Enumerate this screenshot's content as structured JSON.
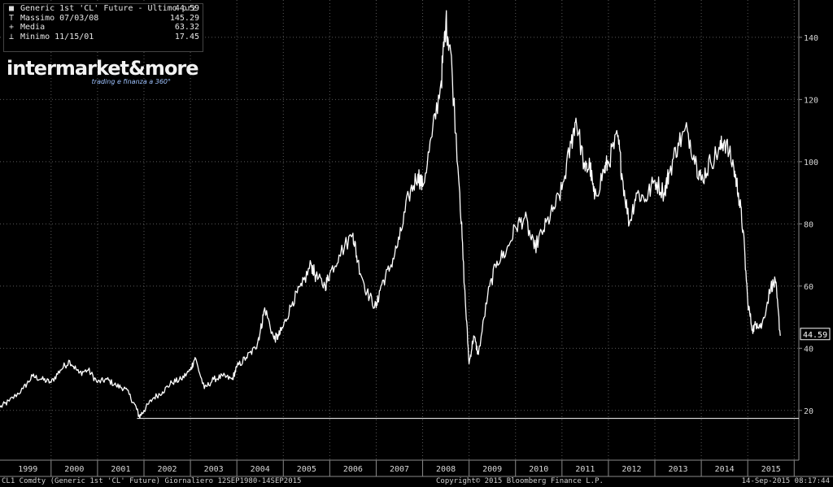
{
  "legend": [
    {
      "symbol": "■",
      "label": "Generic 1st 'CL' Future - Ultimo prz",
      "value": "44.59"
    },
    {
      "symbol": "T",
      "label": "Massimo 07/03/08",
      "value": "145.29"
    },
    {
      "symbol": "+",
      "label": "Media",
      "value": "63.32"
    },
    {
      "symbol": "⊥",
      "label": "Minimo 11/15/01",
      "value": "17.45"
    }
  ],
  "brand": {
    "name": "intermarket&more",
    "tagline": "trading e finanza a 360°"
  },
  "footer": {
    "left": "CL1 Comdty (Generic 1st 'CL' Future)  Giornaliero 12SEP1980-14SEP2015",
    "center": "Copyright© 2015 Bloomberg Finance L.P.",
    "right": "14-Sep-2015 08:17:44"
  },
  "colors": {
    "background": "#000000",
    "line": "#ffffff",
    "grid": "#5a5a5a",
    "text": "#d8d8d8"
  },
  "chart_data": {
    "type": "line",
    "ylim": [
      4,
      152
    ],
    "xlim": [
      1998.9,
      2016.1
    ],
    "yticks": [
      20,
      40,
      60,
      80,
      100,
      120,
      140
    ],
    "xtick_labels": [
      "1999",
      "2000",
      "2001",
      "2002",
      "2003",
      "2004",
      "2005",
      "2006",
      "2007",
      "2008",
      "2009",
      "2010",
      "2011",
      "2012",
      "2013",
      "2014",
      "2015"
    ],
    "last_price": "44.59",
    "last_value": 44.59,
    "min_value": 17.45,
    "grid": true,
    "series": [
      {
        "name": "Generic 1st 'CL' Future",
        "x": [
          1998.9,
          1999.1,
          1999.4,
          1999.6,
          1999.8,
          2000.0,
          2000.2,
          2000.4,
          2000.6,
          2000.8,
          2001.0,
          2001.2,
          2001.4,
          2001.6,
          2001.8,
          2001.9,
          2002.0,
          2002.2,
          2002.4,
          2002.6,
          2002.8,
          2003.0,
          2003.1,
          2003.3,
          2003.5,
          2003.7,
          2003.9,
          2004.0,
          2004.2,
          2004.4,
          2004.5,
          2004.6,
          2004.8,
          2004.9,
          2005.0,
          2005.2,
          2005.4,
          2005.6,
          2005.7,
          2005.9,
          2006.0,
          2006.2,
          2006.5,
          2006.6,
          2006.8,
          2007.0,
          2007.1,
          2007.3,
          2007.5,
          2007.7,
          2007.9,
          2008.0,
          2008.2,
          2008.4,
          2008.5,
          2008.6,
          2008.8,
          2008.9,
          2009.0,
          2009.1,
          2009.2,
          2009.4,
          2009.6,
          2009.8,
          2010.0,
          2010.2,
          2010.4,
          2010.6,
          2010.8,
          2011.0,
          2011.2,
          2011.3,
          2011.5,
          2011.6,
          2011.7,
          2011.9,
          2012.0,
          2012.2,
          2012.3,
          2012.45,
          2012.6,
          2012.8,
          2013.0,
          2013.2,
          2013.3,
          2013.5,
          2013.7,
          2013.9,
          2014.0,
          2014.2,
          2014.4,
          2014.5,
          2014.7,
          2014.8,
          2014.9,
          2015.0,
          2015.1,
          2015.2,
          2015.3,
          2015.5,
          2015.6,
          2015.7
        ],
        "values": [
          21,
          23,
          27,
          31,
          30,
          29,
          33,
          36,
          32,
          33,
          29,
          30,
          28,
          27,
          22,
          18,
          20,
          24,
          26,
          29,
          30,
          33,
          37,
          27,
          30,
          31,
          30,
          34,
          37,
          40,
          45,
          53,
          43,
          44,
          47,
          55,
          60,
          67,
          63,
          60,
          64,
          70,
          77,
          68,
          58,
          53,
          60,
          66,
          75,
          89,
          96,
          92,
          108,
          126,
          145,
          136,
          90,
          60,
          35,
          44,
          38,
          57,
          68,
          71,
          79,
          82,
          72,
          78,
          84,
          91,
          106,
          114,
          97,
          99,
          88,
          97,
          100,
          108,
          95,
          80,
          90,
          88,
          94,
          90,
          96,
          106,
          110,
          99,
          94,
          100,
          104,
          107,
          98,
          90,
          78,
          55,
          46,
          48,
          47,
          60,
          61,
          44
        ]
      }
    ]
  }
}
